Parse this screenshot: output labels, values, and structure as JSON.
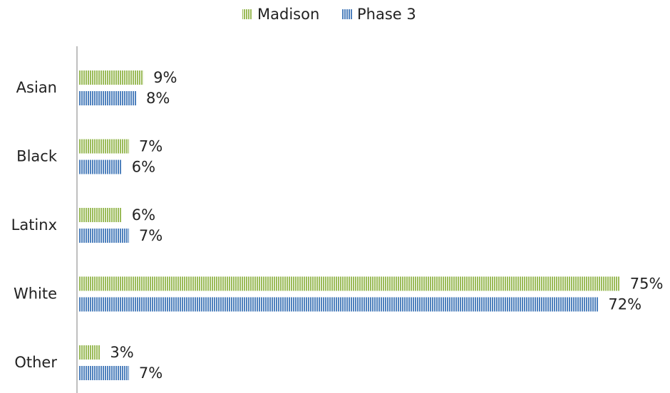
{
  "chart_data": {
    "type": "hbar",
    "categories": [
      "Asian",
      "Black",
      "Latinx",
      "White",
      "Other"
    ],
    "series": [
      {
        "name": "Madison",
        "color": "#9bbb59",
        "values": [
          9,
          7,
          6,
          75,
          3
        ],
        "value_labels": [
          "9%",
          "7%",
          "6%",
          "75%",
          "3%"
        ]
      },
      {
        "name": "Phase 3",
        "color": "#4f81bd",
        "values": [
          8,
          6,
          7,
          72,
          7
        ],
        "value_labels": [
          "8%",
          "6%",
          "7%",
          "72%",
          "7%"
        ]
      }
    ],
    "legend": "top"
  }
}
